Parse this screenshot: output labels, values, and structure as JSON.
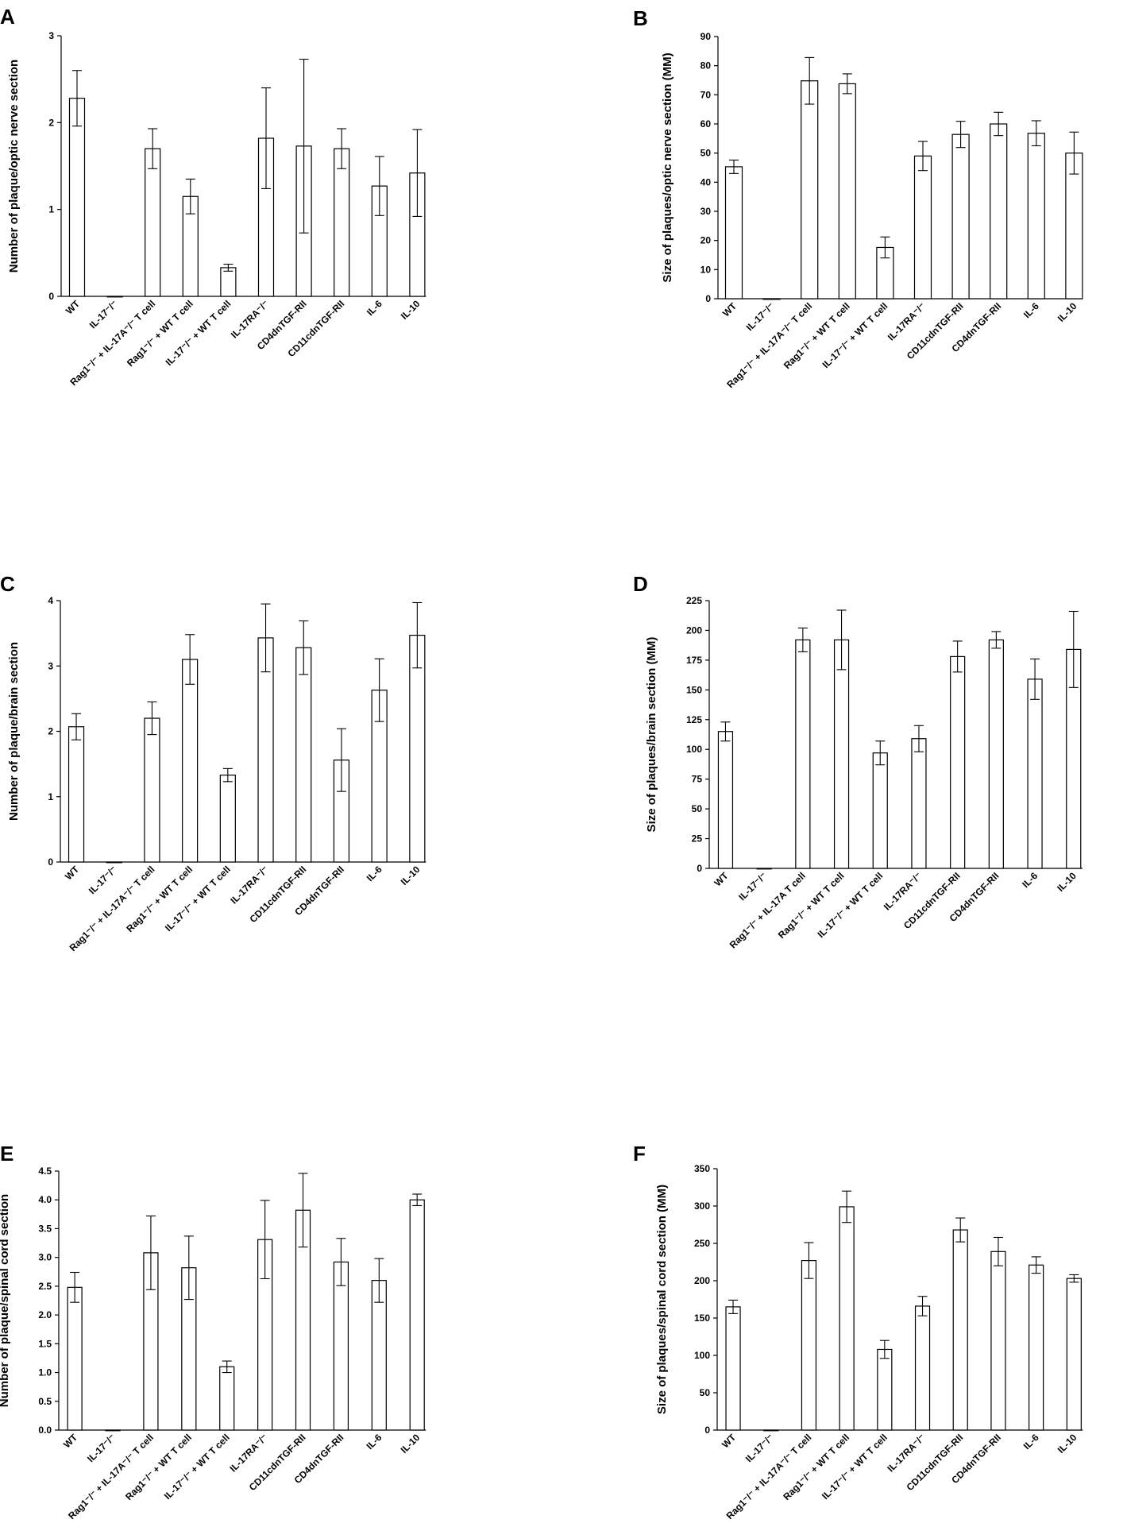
{
  "chart_data": [
    {
      "panel": "A",
      "type": "bar",
      "ylabel": "Number of plaque/optic nerve section",
      "ylim": [
        0,
        3
      ],
      "yticks": [
        "0",
        "1",
        "2",
        "3"
      ],
      "categories": [
        "WT",
        "IL-17⁻/⁻",
        "Rag1⁻/⁻ + IL-17A⁻/⁻ T cell",
        "Rag1⁻/⁻ + WT T cell",
        "IL-17⁻/⁻ + WT T cell",
        "IL-17RA⁻/⁻",
        "CD4dnTGF-RII",
        "CD11cdnTGF-RII",
        "IL-6",
        "IL-10"
      ],
      "values": [
        2.28,
        0.0,
        1.7,
        1.15,
        0.33,
        1.82,
        1.73,
        1.7,
        1.27,
        1.42
      ],
      "errors": [
        0.32,
        0.0,
        0.23,
        0.2,
        0.04,
        0.58,
        1.0,
        0.23,
        0.34,
        0.5
      ],
      "grid": false
    },
    {
      "panel": "B",
      "type": "bar",
      "ylabel": "Size of plaques/optic nerve section (MM)",
      "ylim": [
        0,
        90
      ],
      "yticks": [
        "0",
        "10",
        "20",
        "30",
        "40",
        "50",
        "60",
        "70",
        "80",
        "90"
      ],
      "categories": [
        "WT",
        "IL-17⁻/⁻",
        "Rag1⁻/⁻ + IL-17A⁻/⁻ T cell",
        "Rag1⁻/⁻ + WT T cell",
        "IL-17⁻/⁻ + WT T cell",
        "IL-17RA⁻/⁻",
        "CD11cdnTGF-RII",
        "CD4dnTGF-RII",
        "IL-6",
        "IL-10"
      ],
      "values": [
        45.3,
        0.0,
        74.8,
        73.8,
        17.6,
        49.0,
        56.4,
        60.0,
        56.8,
        50.0
      ],
      "errors": [
        2.3,
        0.0,
        8.0,
        3.4,
        3.6,
        5.0,
        4.5,
        4.0,
        4.3,
        7.2
      ],
      "grid": false
    },
    {
      "panel": "C",
      "type": "bar",
      "ylabel": "Number of plaque/brain section",
      "ylim": [
        0,
        4
      ],
      "yticks": [
        "0",
        "1",
        "2",
        "3",
        "4"
      ],
      "categories": [
        "WT",
        "IL-17⁻/⁻",
        "Rag1⁻/⁻ + IL-17A⁻/⁻ T cell",
        "Rag1⁻/⁻ + WT T cell",
        "IL-17⁻/⁻ + WT T cell",
        "IL-17RA⁻/⁻",
        "CD11cdnTGF-RII",
        "CD4dnTGF-RII",
        "IL-6",
        "IL-10"
      ],
      "values": [
        2.07,
        0.0,
        2.2,
        3.1,
        1.33,
        3.43,
        3.28,
        1.56,
        2.63,
        3.47
      ],
      "errors": [
        0.2,
        0.0,
        0.25,
        0.38,
        0.1,
        0.52,
        0.41,
        0.48,
        0.48,
        0.5
      ],
      "grid": false
    },
    {
      "panel": "D",
      "type": "bar",
      "ylabel": "Size of plaques/brain section (MM)",
      "ylim": [
        0,
        225
      ],
      "yticks": [
        "0",
        "25",
        "50",
        "75",
        "100",
        "125",
        "150",
        "175",
        "200",
        "225"
      ],
      "categories": [
        "WT",
        "IL-17⁻/⁻",
        "Rag1⁻/⁻ + IL-17A T cell",
        "Rag1⁻/⁻ + WT T cell",
        "IL-17⁻/⁻ + WT T cell",
        "IL-17RA⁻/⁻",
        "CD11cdnTGF-RII",
        "CD4dnTGF-RII",
        "IL-6",
        "IL-10"
      ],
      "values": [
        115,
        0,
        192,
        192,
        97,
        109,
        178,
        192,
        159,
        184
      ],
      "errors": [
        8,
        0,
        10,
        25,
        10,
        11,
        13,
        7,
        17,
        32
      ],
      "grid": false
    },
    {
      "panel": "E",
      "type": "bar",
      "ylabel": "Number of plaque/spinal cord section",
      "ylim": [
        0,
        4.5
      ],
      "yticks": [
        "0.0",
        "0.5",
        "1.0",
        "1.5",
        "2.0",
        "2.5",
        "3.0",
        "3.5",
        "4.0",
        "4.5"
      ],
      "categories": [
        "WT",
        "IL-17⁻/⁻",
        "Rag1⁻/⁻ + IL-17A⁻/⁻ T cell",
        "Rag1⁻/⁻ + WT T cell",
        "IL-17⁻/⁻ + WT T cell",
        "IL-17RA⁻/⁻",
        "CD11cdnTGF-RII",
        "CD4dnTGF-RII",
        "IL-6",
        "IL-10"
      ],
      "values": [
        2.48,
        0.0,
        3.08,
        2.82,
        1.1,
        3.31,
        3.82,
        2.92,
        2.6,
        4.0
      ],
      "errors": [
        0.26,
        0.0,
        0.64,
        0.55,
        0.1,
        0.68,
        0.64,
        0.41,
        0.38,
        0.1
      ],
      "grid": false
    },
    {
      "panel": "F",
      "type": "bar",
      "ylabel": "Size of plaques/spinal cord section (MM)",
      "ylim": [
        0,
        350
      ],
      "yticks": [
        "0",
        "50",
        "100",
        "150",
        "200",
        "250",
        "300",
        "350"
      ],
      "categories": [
        "WT",
        "IL-17⁻/⁻",
        "Rag1⁻/⁻ + IL-17A⁻/⁻ T cell",
        "Rag1⁻/⁻ + WT T cell",
        "IL-17⁻/⁻ + WT T cell",
        "IL-17RA⁻/⁻",
        "CD11cdnTGF-RII",
        "CD4dnTGF-RII",
        "IL-6",
        "IL-10"
      ],
      "values": [
        165,
        0,
        227,
        299,
        108,
        166,
        268,
        239,
        221,
        203
      ],
      "errors": [
        9,
        0,
        24,
        21,
        12,
        13,
        16,
        19,
        11,
        5
      ],
      "grid": false
    }
  ]
}
